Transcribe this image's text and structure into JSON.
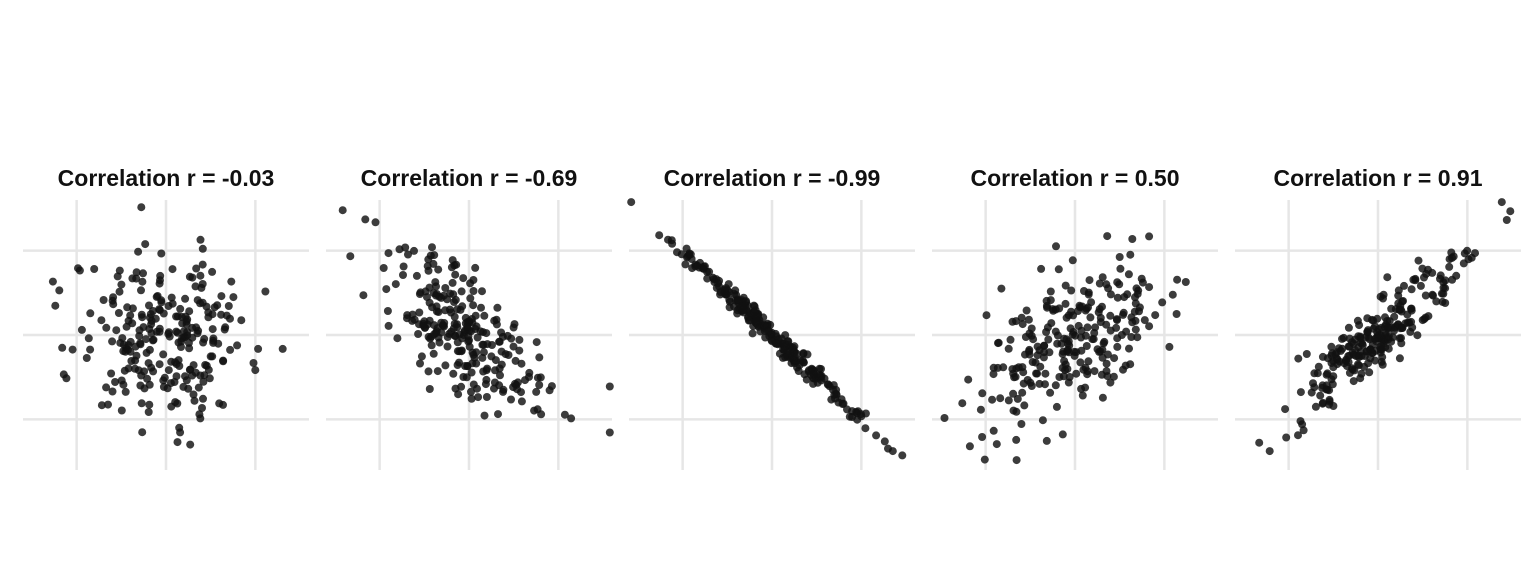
{
  "chart_data": [
    {
      "type": "scatter",
      "title": "Correlation r = -0.03",
      "r": -0.03,
      "xlim": [
        -3.2,
        3.2
      ],
      "ylim": [
        -3.2,
        3.2
      ],
      "n": 250,
      "grid": true,
      "axes_labels_shown": false
    },
    {
      "type": "scatter",
      "title": "Correlation r = -0.69",
      "r": -0.69,
      "xlim": [
        -3.2,
        3.2
      ],
      "ylim": [
        -3.2,
        3.2
      ],
      "n": 250,
      "grid": true,
      "axes_labels_shown": false
    },
    {
      "type": "scatter",
      "title": "Correlation r = -0.99",
      "r": -0.99,
      "xlim": [
        -3.2,
        3.2
      ],
      "ylim": [
        -3.2,
        3.2
      ],
      "n": 250,
      "grid": true,
      "axes_labels_shown": false
    },
    {
      "type": "scatter",
      "title": "Correlation r = 0.50",
      "r": 0.5,
      "xlim": [
        -3.2,
        3.2
      ],
      "ylim": [
        -3.2,
        3.2
      ],
      "n": 250,
      "grid": true,
      "axes_labels_shown": false
    },
    {
      "type": "scatter",
      "title": "Correlation r = 0.91",
      "r": 0.91,
      "xlim": [
        -3.2,
        3.2
      ],
      "ylim": [
        -3.2,
        3.2
      ],
      "n": 250,
      "grid": true,
      "axes_labels_shown": false
    }
  ],
  "colors": {
    "point": "#111111",
    "grid": "#e6e6e6",
    "background": "#ffffff",
    "title": "#111111"
  }
}
